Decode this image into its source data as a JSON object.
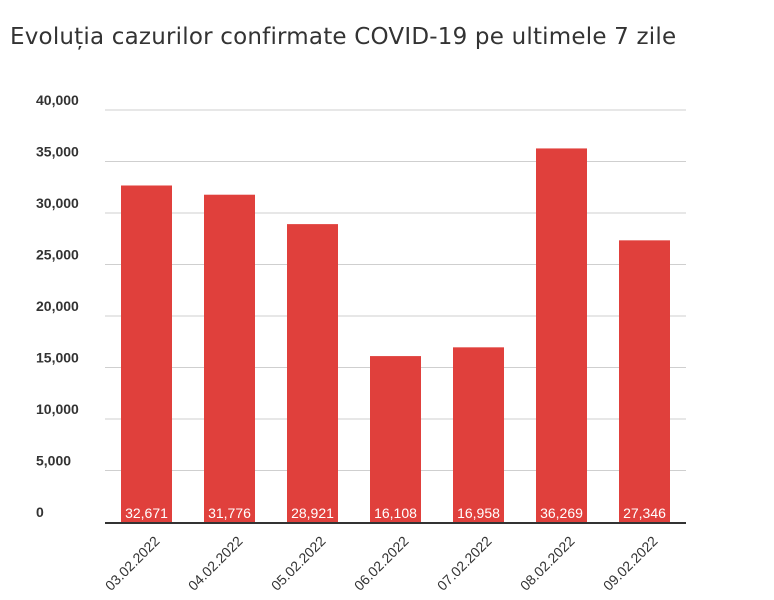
{
  "chart_data": {
    "type": "bar",
    "title": "Evoluția cazurilor confirmate COVID-19 pe ultimele 7 zile",
    "categories": [
      "03.02.2022",
      "04.02.2022",
      "05.02.2022",
      "06.02.2022",
      "07.02.2022",
      "08.02.2022",
      "09.02.2022"
    ],
    "values": [
      32671,
      31776,
      28921,
      16108,
      16958,
      36269,
      27346
    ],
    "data_labels": [
      "32,671",
      "31,776",
      "28,921",
      "16,108",
      "16,958",
      "36,269",
      "27,346"
    ],
    "yticks": [
      "0",
      "5,000",
      "10,000",
      "15,000",
      "20,000",
      "25,000",
      "30,000",
      "35,000",
      "40,000"
    ],
    "ylim": [
      0,
      40000
    ],
    "grid": true,
    "legend": "none",
    "bar_color": "#e0403c"
  }
}
